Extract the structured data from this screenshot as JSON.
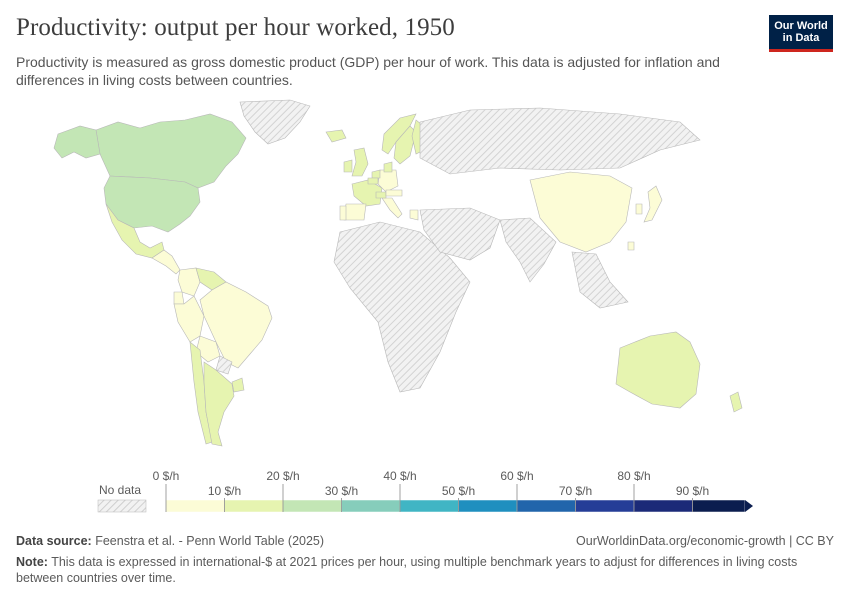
{
  "header": {
    "title": "Productivity: output per hour worked, 1950",
    "subtitle": "Productivity is measured as gross domestic product (GDP) per hour of work. This data is adjusted for inflation and differences in living costs between countries."
  },
  "logo": {
    "line1": "Our World",
    "line2": "in Data"
  },
  "legend": {
    "no_data_label": "No data",
    "upper_labels": [
      "0 $/h",
      "20 $/h",
      "40 $/h",
      "60 $/h",
      "80 $/h"
    ],
    "lower_labels": [
      "10 $/h",
      "30 $/h",
      "50 $/h",
      "70 $/h",
      "90 $/h"
    ],
    "bins": [
      0,
      10,
      20,
      30,
      40,
      50,
      60,
      70,
      80,
      90
    ],
    "colors": [
      "#fcfcd6",
      "#e6f4b0",
      "#c3e6b5",
      "#86cdbb",
      "#40b5c4",
      "#1f8fbf",
      "#2165ab",
      "#253d97",
      "#1b2a78",
      "#0b1d4f"
    ]
  },
  "colors": {
    "no_data_fill": "#ececec",
    "no_data_hatch": "#cfcfcf",
    "country_border": "#b8b8b8"
  },
  "map": {
    "regions": [
      {
        "name": "Canada",
        "value": 22
      },
      {
        "name": "Alaska (United States)",
        "value": 22
      },
      {
        "name": "Greenland",
        "value": null
      },
      {
        "name": "United States",
        "value": 27
      },
      {
        "name": "Mexico",
        "value": 12
      },
      {
        "name": "Central America",
        "value": 8
      },
      {
        "name": "Colombia",
        "value": 6
      },
      {
        "name": "Venezuela",
        "value": 12
      },
      {
        "name": "Ecuador",
        "value": 6
      },
      {
        "name": "Peru",
        "value": 6
      },
      {
        "name": "Brazil",
        "value": 5
      },
      {
        "name": "Bolivia",
        "value": 6
      },
      {
        "name": "Chile",
        "value": 10
      },
      {
        "name": "Argentina",
        "value": 12
      },
      {
        "name": "Paraguay",
        "value": null
      },
      {
        "name": "Uruguay",
        "value": 12
      },
      {
        "name": "United Kingdom",
        "value": 15
      },
      {
        "name": "Ireland",
        "value": 12
      },
      {
        "name": "Iceland",
        "value": 10
      },
      {
        "name": "Norway",
        "value": 15
      },
      {
        "name": "Sweden",
        "value": 15
      },
      {
        "name": "Finland",
        "value": 11
      },
      {
        "name": "France",
        "value": 12
      },
      {
        "name": "Spain",
        "value": 6
      },
      {
        "name": "Portugal",
        "value": 5
      },
      {
        "name": "Germany",
        "value": 9
      },
      {
        "name": "Italy",
        "value": 9
      },
      {
        "name": "Switzerland",
        "value": 18
      },
      {
        "name": "Denmark",
        "value": 15
      },
      {
        "name": "Netherlands",
        "value": 16
      },
      {
        "name": "Belgium",
        "value": 16
      },
      {
        "name": "Austria",
        "value": 8
      },
      {
        "name": "Greece",
        "value": 5
      },
      {
        "name": "China",
        "value": 2
      },
      {
        "name": "Japan",
        "value": 5
      },
      {
        "name": "South Korea",
        "value": 3
      },
      {
        "name": "Taiwan",
        "value": 3
      },
      {
        "name": "Australia",
        "value": 19
      },
      {
        "name": "New Zealand",
        "value": 17
      },
      {
        "name": "Russia",
        "value": null
      },
      {
        "name": "Africa",
        "value": null
      },
      {
        "name": "Middle East",
        "value": null
      },
      {
        "name": "South Asia",
        "value": null
      },
      {
        "name": "Southeast Asia",
        "value": null
      }
    ]
  },
  "footer": {
    "source_label": "Data source:",
    "source_text": "Feenstra et al. - Penn World Table (2025)",
    "credit": "OurWorldinData.org/economic-growth | CC BY",
    "note_label": "Note:",
    "note_text": "This data is expressed in international-$ at 2021 prices per hour, using multiple benchmark years to adjust for differences in living costs between countries over time."
  }
}
